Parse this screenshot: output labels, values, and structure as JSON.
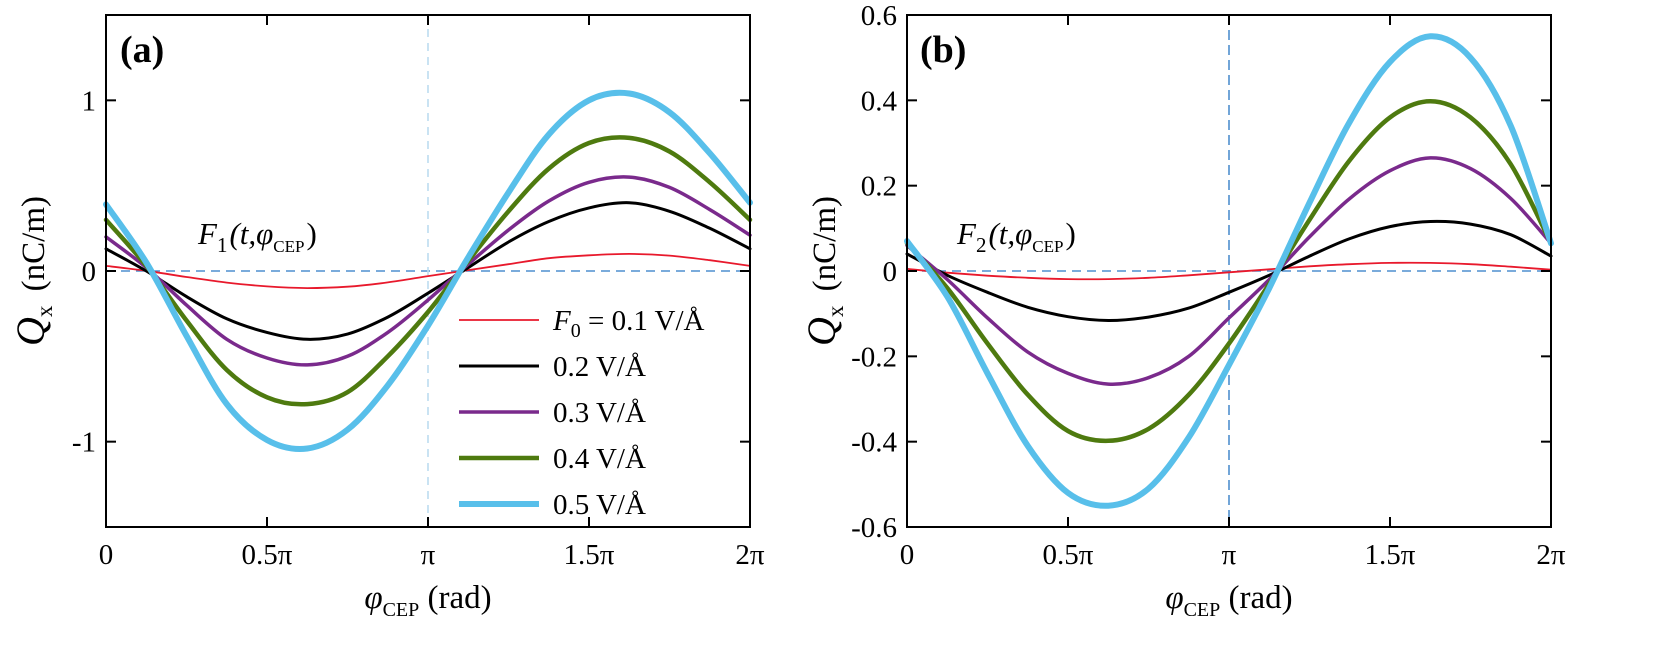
{
  "figure": {
    "legend": {
      "entries": [
        {
          "label": "0.1 V/Å",
          "prefix": "F",
          "prefix_sub": "0",
          "prefix_eq": " = ",
          "color": "#e8192c",
          "width": 1.8
        },
        {
          "label": "0.2 V/Å",
          "color": "#000000",
          "width": 3
        },
        {
          "label": "0.3 V/Å",
          "color": "#7a2a8c",
          "width": 3.5
        },
        {
          "label": "0.4 V/Å",
          "color": "#4e7a0f",
          "width": 4.5
        },
        {
          "label": "0.5 V/Å",
          "color": "#58bfea",
          "width": 6
        }
      ]
    },
    "x_axis_label": {
      "main": "φ",
      "sub": "CEP",
      "unit": " (rad)"
    },
    "y_axis_label": {
      "main": "Q",
      "sub": "x",
      "unit": " (nC/m)"
    },
    "x_tick_labels": [
      "0",
      "0.5π",
      "π",
      "1.5π",
      "2π"
    ]
  },
  "chart_data": [
    {
      "type": "line",
      "panel": "(a)",
      "annotation": {
        "main": "F",
        "sub": "1",
        "args": "(t,φ",
        "args_sub": "CEP",
        "close": ")"
      },
      "xlim": [
        0,
        6.2832
      ],
      "ylim": [
        -1.5,
        1.5
      ],
      "yticks": [
        -1,
        0,
        1
      ],
      "ytick_labels": [
        "-1",
        "0",
        "1"
      ],
      "xticks": [
        0,
        1.5708,
        3.1416,
        4.7124,
        6.2832
      ],
      "x": [
        0,
        0.3927,
        0.7854,
        1.1781,
        1.5708,
        1.9635,
        2.3562,
        2.7489,
        3.1416,
        3.5343,
        3.927,
        4.3197,
        4.7124,
        5.1051,
        5.4978,
        5.8905,
        6.2832
      ],
      "series": [
        {
          "name": "0.1 V/Å",
          "values": [
            0.03,
            0.001,
            -0.035,
            -0.068,
            -0.09,
            -0.1,
            -0.092,
            -0.067,
            -0.03,
            0.005,
            0.04,
            0.075,
            0.092,
            0.1,
            0.09,
            0.063,
            0.03
          ]
        },
        {
          "name": "0.2 V/Å",
          "values": [
            0.13,
            0.0,
            -0.15,
            -0.28,
            -0.36,
            -0.4,
            -0.37,
            -0.27,
            -0.13,
            0.02,
            0.17,
            0.29,
            0.37,
            0.4,
            0.35,
            0.25,
            0.13
          ]
        },
        {
          "name": "0.3 V/Å",
          "values": [
            0.2,
            0.02,
            -0.2,
            -0.4,
            -0.51,
            -0.55,
            -0.5,
            -0.36,
            -0.17,
            0.04,
            0.24,
            0.41,
            0.52,
            0.55,
            0.49,
            0.36,
            0.21
          ]
        },
        {
          "name": "0.4 V/Å",
          "values": [
            0.3,
            0.03,
            -0.29,
            -0.58,
            -0.74,
            -0.78,
            -0.71,
            -0.5,
            -0.24,
            0.06,
            0.35,
            0.6,
            0.75,
            0.78,
            0.7,
            0.52,
            0.3
          ]
        },
        {
          "name": "0.5 V/Å",
          "values": [
            0.39,
            0.05,
            -0.38,
            -0.78,
            -0.99,
            -1.04,
            -0.93,
            -0.67,
            -0.32,
            0.08,
            0.46,
            0.8,
            1.0,
            1.04,
            0.93,
            0.69,
            0.4
          ]
        }
      ]
    },
    {
      "type": "line",
      "panel": "(b)",
      "annotation": {
        "main": "F",
        "sub": "2",
        "args": "(t,φ",
        "args_sub": "CEP",
        "close": ")"
      },
      "xlim": [
        0,
        6.2832
      ],
      "ylim": [
        -0.6,
        0.6
      ],
      "yticks": [
        -0.6,
        -0.4,
        -0.2,
        0,
        0.2,
        0.4,
        0.6
      ],
      "ytick_labels": [
        "-0.6",
        "-0.4",
        "-0.2",
        "0",
        "0.2",
        "0.4",
        "0.6"
      ],
      "xticks": [
        0,
        1.5708,
        3.1416,
        4.7124,
        6.2832
      ],
      "x": [
        0,
        0.3927,
        0.7854,
        1.1781,
        1.5708,
        1.9635,
        2.3562,
        2.7489,
        3.1416,
        3.5343,
        3.927,
        4.3197,
        4.7124,
        5.1051,
        5.4978,
        5.8905,
        6.2832
      ],
      "series": [
        {
          "name": "0.1 V/Å",
          "values": [
            0.005,
            -0.004,
            -0.011,
            -0.016,
            -0.019,
            -0.019,
            -0.016,
            -0.01,
            -0.003,
            0.004,
            0.011,
            0.016,
            0.019,
            0.019,
            0.016,
            0.01,
            0.003
          ]
        },
        {
          "name": "0.2 V/Å",
          "values": [
            0.04,
            -0.01,
            -0.05,
            -0.085,
            -0.107,
            -0.116,
            -0.108,
            -0.087,
            -0.05,
            -0.01,
            0.035,
            0.076,
            0.104,
            0.116,
            0.11,
            0.085,
            0.035
          ]
        },
        {
          "name": "0.3 V/Å",
          "values": [
            0.06,
            -0.02,
            -0.11,
            -0.19,
            -0.24,
            -0.265,
            -0.25,
            -0.2,
            -0.11,
            -0.02,
            0.08,
            0.17,
            0.235,
            0.265,
            0.24,
            0.17,
            0.065
          ]
        },
        {
          "name": "0.4 V/Å",
          "values": [
            0.065,
            -0.04,
            -0.17,
            -0.29,
            -0.375,
            -0.398,
            -0.37,
            -0.29,
            -0.17,
            -0.03,
            0.12,
            0.26,
            0.36,
            0.398,
            0.36,
            0.25,
            0.065
          ]
        },
        {
          "name": "0.5 V/Å",
          "values": [
            0.07,
            -0.06,
            -0.24,
            -0.41,
            -0.52,
            -0.55,
            -0.51,
            -0.39,
            -0.22,
            -0.04,
            0.16,
            0.35,
            0.49,
            0.55,
            0.5,
            0.34,
            0.065
          ]
        }
      ]
    }
  ]
}
